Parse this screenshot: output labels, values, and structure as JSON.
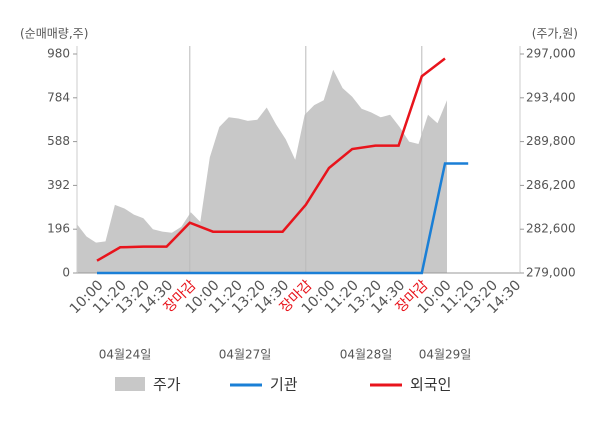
{
  "chart_data": {
    "type": "line",
    "y_label": "(순매매량,주)",
    "y2_label": "(주가,원)",
    "categories": [
      "10:00",
      "11:20",
      "13:20",
      "14:30",
      "장마감",
      "10:00",
      "11:20",
      "13:20",
      "14:30",
      "장마감",
      "10:00",
      "11:20",
      "13:20",
      "14:30",
      "장마감",
      "10:00",
      "11:20",
      "13:20",
      "14:30"
    ],
    "dates": [
      "04월24일",
      "04월27일",
      "04월28일",
      "04월29일"
    ],
    "ylim": [
      0,
      980
    ],
    "yticks": [
      0,
      196,
      392,
      588,
      784,
      980
    ],
    "y2lim": [
      279000,
      297000
    ],
    "y2ticks": [
      {
        "value": 279000,
        "label": "279,000"
      },
      {
        "value": 282600,
        "label": "282,600"
      },
      {
        "value": 286200,
        "label": "286,200"
      },
      {
        "value": 289800,
        "label": "289,800"
      },
      {
        "value": 293400,
        "label": "293,400"
      },
      {
        "value": 297000,
        "label": "297,000"
      }
    ],
    "price": {
      "name": "주가",
      "color": "#c8c8c8",
      "axis": "y2",
      "values": [
        283000,
        282000,
        281500,
        281600,
        284600,
        284300,
        283800,
        283500,
        282600,
        282400,
        282300,
        282800,
        284000,
        283200,
        288500,
        291000,
        291800,
        291700,
        291500,
        291600,
        292600,
        291200,
        290000,
        288300,
        292000,
        292800,
        293200,
        295700,
        294200,
        293500,
        292500,
        292200,
        291800,
        292000,
        291000,
        289800,
        289600,
        292000,
        291300,
        293200
      ]
    },
    "series": [
      {
        "name": "기관",
        "color": "#1a7fd6",
        "values": [
          0,
          0,
          0,
          0,
          0,
          0,
          0,
          0,
          0,
          0,
          0,
          0,
          0,
          0,
          0,
          490,
          490,
          null,
          null
        ]
      },
      {
        "name": "외국인",
        "color": "#e8141c",
        "values": [
          55,
          115,
          118,
          118,
          225,
          185,
          185,
          185,
          185,
          305,
          470,
          555,
          570,
          570,
          880,
          960,
          null,
          null,
          null
        ]
      }
    ]
  }
}
